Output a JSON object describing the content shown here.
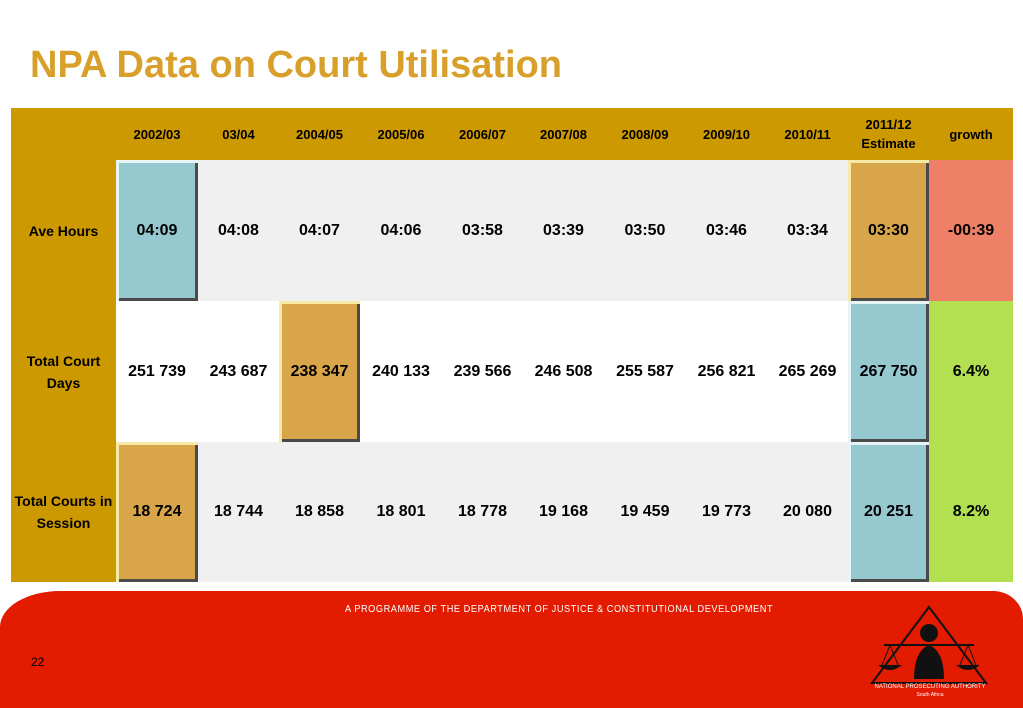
{
  "title": "NPA Data on Court Utilisation",
  "table": {
    "headers": [
      "2002/03",
      "03/04",
      "2004/05",
      "2005/06",
      "2006/07",
      "2007/08",
      "2008/09",
      "2009/10",
      "2010/11",
      "2011/12 Estimate",
      "growth"
    ],
    "rows": [
      {
        "label": "Ave Hours",
        "values": [
          "04:09",
          "04:08",
          "04:07",
          "04:06",
          "03:58",
          "03:39",
          "03:50",
          "03:46",
          "03:34",
          "03:30"
        ],
        "growth": "-00:39"
      },
      {
        "label": "Total Court Days",
        "values": [
          "251 739",
          "243 687",
          "238 347",
          "240 133",
          "239 566",
          "246 508",
          "255 587",
          "256 821",
          "265 269",
          "267 750"
        ],
        "growth": "6.4%"
      },
      {
        "label": "Total Courts in Session",
        "values": [
          "18 724",
          "18 744",
          "18 858",
          "18 801",
          "18 778",
          "19 168",
          "19 459",
          "19 773",
          "20 080",
          "20 251"
        ],
        "growth": "8.2%"
      }
    ]
  },
  "footer": {
    "programme": "A PROGRAMME OF THE DEPARTMENT OF JUSTICE & CONSTITUTIONAL DEVELOPMENT",
    "page_number": "22",
    "logo_name": "NATIONAL PROSECUTING AUTHORITY",
    "logo_sub": "South Africa"
  },
  "colors": {
    "title": "#d8a02a",
    "header": "#cc9900",
    "highlight_blue": "#96c8d0",
    "highlight_gold": "#d9a54a",
    "growth_negative": "#ef8068",
    "growth_positive": "#b2e050",
    "footer_band": "#e31b00"
  }
}
